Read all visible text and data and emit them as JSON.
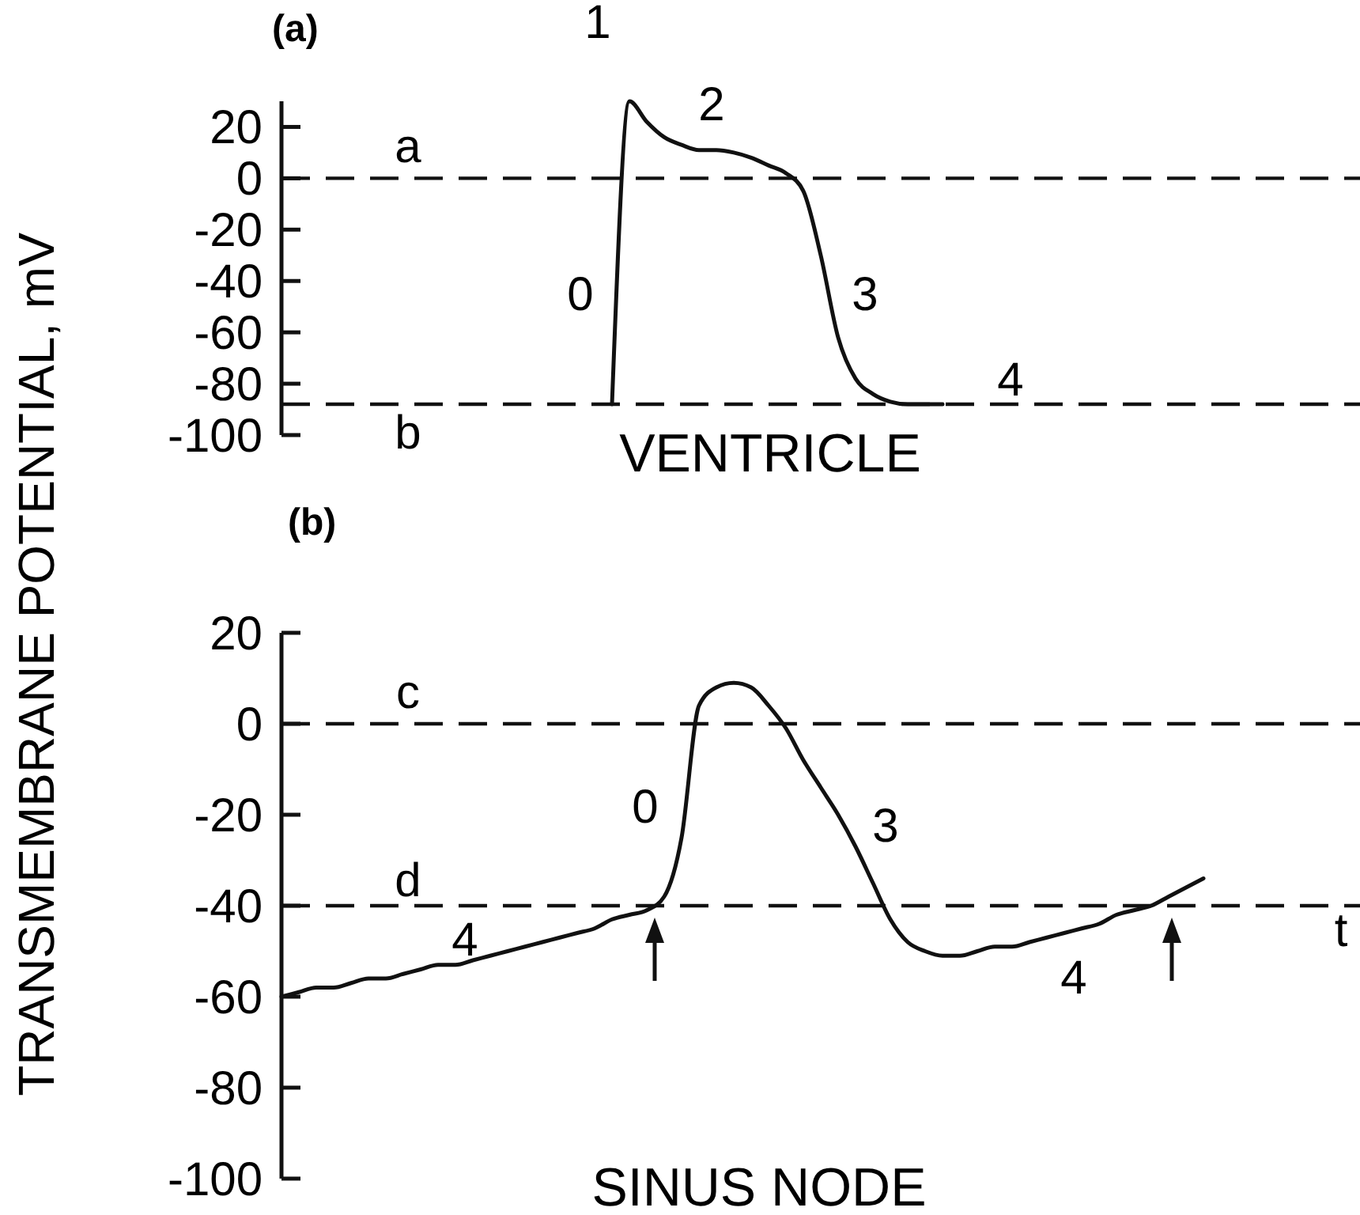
{
  "chart_data": [
    {
      "type": "line",
      "title": "(a)",
      "xlabel": "VENTRICLE",
      "ylabel": "TRANSMEMBRANE POTENTIAL, mV",
      "tick_labels": "y",
      "color": "#111111",
      "categories": [
        null,
        null,
        null,
        null,
        null,
        null,
        null,
        null,
        null,
        null,
        null,
        null,
        null,
        null,
        null,
        null,
        null,
        null,
        null,
        null,
        null,
        null,
        null,
        null,
        null,
        null,
        null,
        null,
        null,
        null,
        null,
        null,
        null,
        null,
        null,
        null,
        null,
        null,
        null,
        null,
        null,
        null,
        null,
        null,
        null,
        null,
        null,
        null,
        null,
        null,
        null,
        null,
        null,
        null,
        null,
        null,
        null,
        null,
        null,
        null,
        null,
        null,
        null
      ],
      "values": [
        null,
        null,
        null,
        null,
        null,
        null,
        null,
        null,
        null,
        null,
        null,
        null,
        null,
        null,
        null,
        null,
        null,
        null,
        null,
        -88,
        30,
        22,
        16,
        13,
        11,
        11,
        10,
        8,
        5,
        2,
        -5,
        -30,
        -62,
        -78,
        -84,
        -87,
        -88,
        -88,
        -88,
        null,
        null,
        null,
        null,
        null,
        null,
        null,
        null,
        null,
        null,
        null,
        null,
        null,
        null,
        null,
        null,
        null,
        null,
        null,
        null,
        null,
        null,
        null,
        null
      ],
      "ylim": [
        -100,
        30
      ],
      "yticks": [
        20,
        0,
        -20,
        -40,
        -60,
        -80,
        -100
      ],
      "ref_lines": [
        {
          "axis": "y",
          "value": 0,
          "label": "a",
          "line_style": "dashed"
        },
        {
          "axis": "y",
          "value": -88,
          "label": "b",
          "line_style": "dashed"
        }
      ],
      "annotations": [
        "1",
        "2",
        "0",
        "3",
        "4"
      ]
    },
    {
      "type": "line",
      "title": "(b)",
      "xlabel": "SINUS NODE",
      "tick_labels": "y",
      "color": "#111111",
      "categories": [
        null,
        null,
        null,
        null,
        null,
        null,
        null,
        null,
        null,
        null,
        null,
        null,
        null,
        null,
        null,
        null,
        null,
        null,
        null,
        null,
        null,
        null,
        null,
        null,
        null,
        null,
        null,
        null,
        null,
        null,
        null,
        null,
        null,
        null,
        null,
        null,
        null,
        null,
        null,
        null,
        null,
        null,
        null,
        null,
        null,
        null,
        null,
        null,
        null,
        null,
        null,
        null,
        null,
        null,
        null,
        null,
        null,
        null,
        null,
        null,
        null,
        null,
        null
      ],
      "values": [
        -60,
        -59,
        -58,
        -58,
        -57,
        -56,
        -56,
        -55,
        -54,
        -53,
        -53,
        -52,
        -51,
        -50,
        -49,
        -48,
        -47,
        -46,
        -45,
        -43,
        -42,
        -41,
        -38,
        -25,
        4,
        8,
        9,
        8,
        4,
        -1,
        -8,
        -14,
        -20,
        -27,
        -35,
        -43,
        -48,
        -50,
        -51,
        -51,
        -50,
        -49,
        -49,
        -48,
        -47,
        -46,
        -45,
        -44,
        -42,
        -41,
        -40,
        -38,
        -36,
        -34,
        null,
        null,
        null,
        null,
        null,
        null,
        null,
        null,
        null
      ],
      "ylim": [
        -100,
        20
      ],
      "yticks": [
        20,
        0,
        -20,
        -40,
        -60,
        -80,
        -100
      ],
      "ref_lines": [
        {
          "axis": "y",
          "value": 0,
          "label": "c",
          "line_style": "dashed"
        },
        {
          "axis": "y",
          "value": -40,
          "label": "d",
          "line_style": "dashed"
        }
      ],
      "annotations": [
        "0",
        "3",
        "4",
        "4",
        "t"
      ]
    }
  ]
}
